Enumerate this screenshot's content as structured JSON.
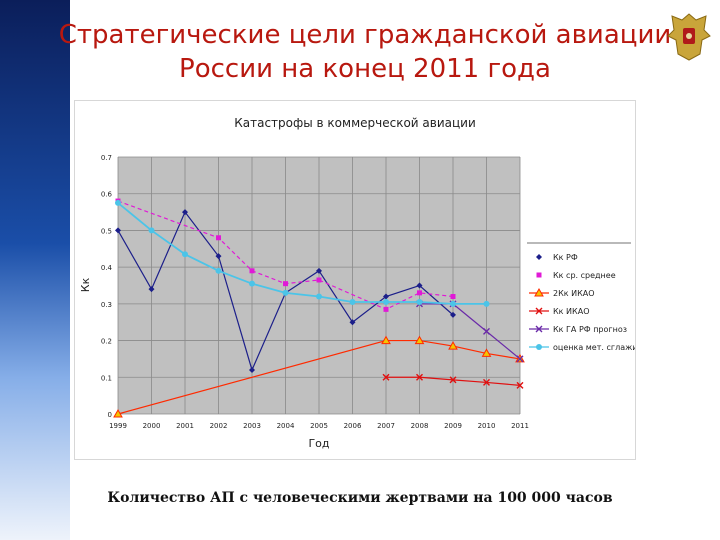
{
  "page": {
    "title_line1": "Стратегические цели гражданской авиации",
    "title_line2": "России на конец 2011 года",
    "caption": "Количество АП с человеческими жертвами на 100 000 часов"
  },
  "chart_data": {
    "type": "line",
    "title": "Катастрофы в коммерческой авиации",
    "xlabel": "Год",
    "ylabel": "Кк",
    "categories": [
      "1999",
      "2000",
      "2001",
      "2002",
      "2003",
      "2004",
      "2005",
      "2006",
      "2007",
      "2008",
      "2009",
      "2010",
      "2011"
    ],
    "ylim": [
      0,
      0.7
    ],
    "yticks": [
      "0",
      "0.1",
      "0.2",
      "0.3",
      "0.4",
      "0.5",
      "0.6",
      "0.7"
    ],
    "grid": true,
    "legend_position": "right",
    "series": [
      {
        "name": "Кк РФ",
        "color": "#1c1f8a",
        "marker": "diamond",
        "dash": "",
        "values": [
          0.5,
          0.34,
          0.55,
          0.43,
          0.12,
          0.33,
          0.39,
          0.25,
          0.32,
          0.35,
          0.27,
          null,
          null
        ]
      },
      {
        "name": "Кк ср. среднее",
        "color": "#e01ad6",
        "marker": "square",
        "dash": "4,3",
        "values": [
          0.58,
          null,
          null,
          0.48,
          0.39,
          0.355,
          0.365,
          null,
          0.285,
          0.33,
          0.32,
          null,
          null
        ]
      },
      {
        "name": "2Кк ИКАО",
        "color": "#ff2a00",
        "marker": "triangle",
        "dash": "",
        "values": [
          0.0,
          null,
          null,
          null,
          null,
          null,
          null,
          null,
          0.2,
          0.2,
          0.185,
          0.165,
          0.15
        ]
      },
      {
        "name": "Кк ИКАО",
        "color": "#e01010",
        "marker": "x",
        "dash": "",
        "values": [
          null,
          null,
          null,
          null,
          null,
          null,
          null,
          null,
          0.1,
          0.1,
          0.093,
          0.086,
          0.078
        ]
      },
      {
        "name": "Кк ГА РФ прогноз",
        "color": "#6a2aa8",
        "marker": "x",
        "dash": "",
        "values": [
          null,
          null,
          null,
          null,
          null,
          null,
          null,
          null,
          null,
          0.3,
          0.3,
          0.225,
          0.15
        ]
      },
      {
        "name": "оценка мет. сглаживания",
        "color": "#4bc4e8",
        "marker": "circle",
        "dash": "",
        "values": [
          0.575,
          0.5,
          0.435,
          0.39,
          0.355,
          0.33,
          0.32,
          0.305,
          0.305,
          0.305,
          0.3,
          0.3,
          null
        ]
      }
    ]
  }
}
